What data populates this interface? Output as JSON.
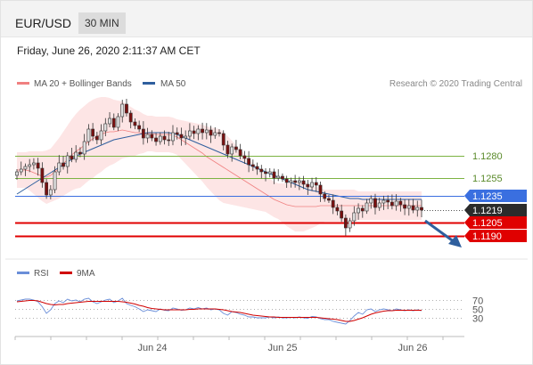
{
  "header": {
    "symbol": "EUR/USD",
    "timeframe": "30 MIN"
  },
  "datetime": "Friday, June 26, 2020 2:11:37 AM CET",
  "legend": {
    "bollinger": "MA 20 + Bollinger Bands",
    "ma50": "MA 50",
    "credit": "Research © 2020 Trading Central"
  },
  "colors": {
    "bollinger": "#f08080",
    "ma50": "#2f5f9e",
    "candle_up": "#e0e0e0",
    "candle_down": "#7a1010",
    "support": "#e00000",
    "pivot": "#3a6fe0",
    "resistance": "#7cb342",
    "arrow": "#2f5f9e",
    "rsi": "#6a8ed8",
    "ma9": "#d00000"
  },
  "levels": [
    {
      "value": "1.1280",
      "kind": "resistance"
    },
    {
      "value": "1.1255",
      "kind": "resistance"
    },
    {
      "value": "1.1235",
      "kind": "pivot"
    },
    {
      "value": "1.1219",
      "kind": "last"
    },
    {
      "value": "1.1205",
      "kind": "support"
    },
    {
      "value": "1.1190",
      "kind": "support"
    }
  ],
  "rsi_panel": {
    "rsi_label": "RSI",
    "ma_label": "9MA",
    "levels": [
      "70",
      "50",
      "30"
    ]
  },
  "x_labels": [
    "Jun 24",
    "Jun 25",
    "Jun 26"
  ],
  "chart_data": {
    "type": "candlestick",
    "price_range": [
      1.118,
      1.135
    ],
    "last_price": 1.1219,
    "closes": [
      1.1262,
      1.1265,
      1.1268,
      1.127,
      1.1272,
      1.1266,
      1.125,
      1.1236,
      1.1242,
      1.1262,
      1.1272,
      1.1268,
      1.128,
      1.1276,
      1.1284,
      1.1282,
      1.1296,
      1.131,
      1.1302,
      1.1298,
      1.1308,
      1.1316,
      1.1322,
      1.1312,
      1.1324,
      1.1338,
      1.1328,
      1.1318,
      1.1314,
      1.131,
      1.13,
      1.1304,
      1.13,
      1.1296,
      1.1302,
      1.1298,
      1.1297,
      1.1306,
      1.1304,
      1.13,
      1.1302,
      1.1308,
      1.1305,
      1.131,
      1.1306,
      1.1309,
      1.1303,
      1.1306,
      1.1305,
      1.1292,
      1.1282,
      1.129,
      1.1287,
      1.128,
      1.1277,
      1.127,
      1.1268,
      1.1265,
      1.1262,
      1.126,
      1.1262,
      1.1255,
      1.1257,
      1.1254,
      1.125,
      1.1252,
      1.125,
      1.1252,
      1.1248,
      1.1245,
      1.125,
      1.1247,
      1.1237,
      1.1232,
      1.123,
      1.1222,
      1.1218,
      1.121,
      1.1199,
      1.1207,
      1.1216,
      1.1221,
      1.1218,
      1.1227,
      1.1232,
      1.1222,
      1.1227,
      1.123,
      1.1228,
      1.1224,
      1.1229,
      1.1225,
      1.1221,
      1.1224,
      1.1219,
      1.1222,
      1.1219
    ],
    "bb_mid": [
      1.1264,
      1.1264,
      1.1264,
      1.1263,
      1.1261,
      1.1259,
      1.1257,
      1.1256,
      1.1258,
      1.1262,
      1.1266,
      1.1271,
      1.1276,
      1.1281,
      1.1285,
      1.1288,
      1.1292,
      1.1296,
      1.1299,
      1.1302,
      1.1304,
      1.1306,
      1.1307,
      1.1307,
      1.1308,
      1.1309,
      1.1308,
      1.1307,
      1.1306,
      1.1306,
      1.1305,
      1.1305,
      1.1305,
      1.1304,
      1.1304,
      1.1304,
      1.1304,
      1.1303,
      1.1301,
      1.1298,
      1.1295,
      1.1292,
      1.1289,
      1.1286,
      1.1283,
      1.1279,
      1.1276,
      1.1273,
      1.127,
      1.1267,
      1.1264,
      1.1261,
      1.1258,
      1.1255,
      1.1252,
      1.1249,
      1.1246,
      1.1243,
      1.124,
      1.1237,
      1.1234,
      1.1231,
      1.1229,
      1.1227,
      1.1225,
      1.1224,
      1.1223,
      1.1223,
      1.1223,
      1.1223,
      1.1223,
      1.1223,
      1.1224,
      1.1224,
      1.1224,
      1.1224,
      1.1224,
      1.1224,
      1.1224,
      1.1224,
      1.1224,
      1.1224,
      1.1224,
      1.1224,
      1.1224,
      1.1224,
      1.1224,
      1.1224,
      1.1224,
      1.1224,
      1.1224,
      1.1224,
      1.1224,
      1.1224,
      1.1224,
      1.1224,
      1.1224
    ],
    "bb_width": [
      0.002,
      0.002,
      0.002,
      0.0022,
      0.0024,
      0.0026,
      0.0028,
      0.003,
      0.003,
      0.0032,
      0.0034,
      0.0036,
      0.0038,
      0.004,
      0.0042,
      0.0044,
      0.0044,
      0.0044,
      0.0044,
      0.0043,
      0.0042,
      0.004,
      0.0038,
      0.0036,
      0.0034,
      0.0032,
      0.003,
      0.0028,
      0.0026,
      0.0024,
      0.0022,
      0.002,
      0.002,
      0.002,
      0.002,
      0.002,
      0.002,
      0.002,
      0.002,
      0.0022,
      0.0024,
      0.0026,
      0.0028,
      0.003,
      0.0032,
      0.0034,
      0.0036,
      0.0038,
      0.004,
      0.004,
      0.0038,
      0.0036,
      0.0034,
      0.0032,
      0.003,
      0.0028,
      0.0026,
      0.0024,
      0.0022,
      0.002,
      0.002,
      0.002,
      0.002,
      0.0022,
      0.0024,
      0.0026,
      0.0028,
      0.0028,
      0.0028,
      0.0026,
      0.0024,
      0.0022,
      0.002,
      0.0018,
      0.0018,
      0.0018,
      0.0018,
      0.0018,
      0.0018,
      0.0018,
      0.0018,
      0.0016,
      0.0016,
      0.0016,
      0.0016,
      0.0016,
      0.0016,
      0.0016,
      0.0016,
      0.0016,
      0.0016,
      0.0016,
      0.0016,
      0.0016,
      0.0016,
      0.0016,
      0.0016
    ],
    "ma50": [
      1.1237,
      1.124,
      1.1243,
      1.1246,
      1.1249,
      1.1252,
      1.1255,
      1.1258,
      1.1261,
      1.1264,
      1.1267,
      1.127,
      1.1273,
      1.1276,
      1.1279,
      1.1282,
      1.1284,
      1.1286,
      1.1288,
      1.129,
      1.1292,
      1.1294,
      1.1296,
      1.1298,
      1.1299,
      1.13,
      1.1301,
      1.1302,
      1.1303,
      1.1304,
      1.1305,
      1.1306,
      1.1306,
      1.1306,
      1.1306,
      1.1306,
      1.1306,
      1.1305,
      1.1304,
      1.1302,
      1.13,
      1.1298,
      1.1296,
      1.1294,
      1.1292,
      1.129,
      1.1288,
      1.1286,
      1.1284,
      1.1282,
      1.128,
      1.1278,
      1.1276,
      1.1274,
      1.1272,
      1.127,
      1.1268,
      1.1266,
      1.1264,
      1.1262,
      1.126,
      1.1258,
      1.1256,
      1.1254,
      1.1252,
      1.125,
      1.1248,
      1.1246,
      1.1244,
      1.1242,
      1.1241,
      1.124,
      1.1239,
      1.1238,
      1.1237,
      1.1236,
      1.1235,
      1.1234,
      1.1233,
      1.1232,
      1.1232,
      1.1232,
      1.1231,
      1.1231,
      1.1231,
      1.1231,
      1.1231,
      1.1231,
      1.1231,
      1.1231,
      1.1231,
      1.1231,
      1.1231,
      1.1231,
      1.1231,
      1.1231,
      1.1231
    ],
    "rsi_range": [
      0,
      100
    ],
    "rsi": [
      68,
      70,
      72,
      72,
      70,
      66,
      55,
      40,
      48,
      62,
      68,
      64,
      72,
      68,
      70,
      66,
      72,
      74,
      66,
      62,
      66,
      70,
      72,
      64,
      68,
      74,
      62,
      58,
      55,
      50,
      44,
      48,
      46,
      44,
      50,
      47,
      46,
      52,
      50,
      47,
      48,
      52,
      50,
      53,
      50,
      52,
      48,
      50,
      48,
      40,
      36,
      44,
      42,
      38,
      36,
      32,
      32,
      30,
      30,
      30,
      32,
      30,
      32,
      30,
      30,
      31,
      30,
      32,
      30,
      29,
      33,
      32,
      28,
      26,
      26,
      22,
      20,
      18,
      16,
      24,
      34,
      42,
      38,
      48,
      50,
      44,
      48,
      50,
      48,
      46,
      50,
      48,
      46,
      48,
      46,
      48,
      46
    ],
    "rsi_ma": [
      66,
      67,
      68,
      69,
      69,
      68,
      65,
      62,
      60,
      59,
      60,
      60,
      62,
      63,
      64,
      65,
      66,
      67,
      67,
      67,
      67,
      67,
      67,
      67,
      67,
      66,
      65,
      63,
      61,
      58,
      56,
      53,
      51,
      50,
      49,
      48,
      48,
      48,
      48,
      48,
      48,
      49,
      49,
      50,
      50,
      50,
      50,
      50,
      49,
      48,
      46,
      44,
      43,
      42,
      40,
      38,
      36,
      35,
      34,
      33,
      32,
      32,
      31,
      31,
      31,
      31,
      31,
      31,
      31,
      31,
      31,
      31,
      30,
      29,
      28,
      27,
      26,
      24,
      22,
      22,
      24,
      27,
      30,
      34,
      38,
      41,
      43,
      45,
      46,
      46,
      47,
      47,
      47,
      47,
      47,
      47,
      47
    ]
  }
}
